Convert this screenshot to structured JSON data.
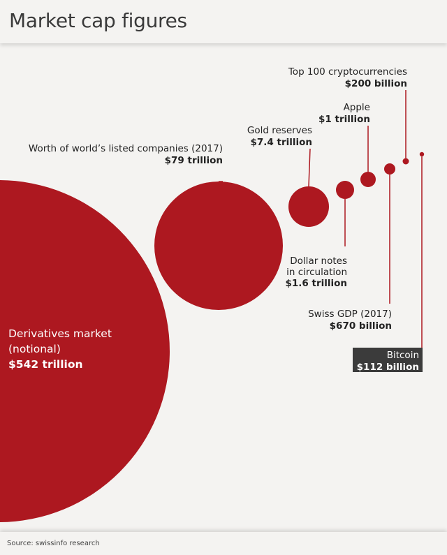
{
  "header": {
    "title": "Market cap figures"
  },
  "footer": {
    "source": "Source: swissinfo research"
  },
  "colors": {
    "bubble": "#ad1820",
    "text": "#222222",
    "leader": "#ad1820",
    "highlight_bg": "#3b3b3b",
    "highlight_text": "#ffffff"
  },
  "chart_data": {
    "type": "bubble",
    "unit": "USD",
    "items": [
      {
        "name_lines": [
          "Derivatives market",
          "(notional)"
        ],
        "value_label": "$542 trillion",
        "value_usd_billion": 542000
      },
      {
        "name_lines": [
          "Worth of world’s listed companies (2017)"
        ],
        "value_label": "$79 trillion",
        "value_usd_billion": 79000
      },
      {
        "name_lines": [
          "Gold reserves"
        ],
        "value_label": "$7.4 trillion",
        "value_usd_billion": 7400
      },
      {
        "name_lines": [
          "Dollar notes",
          "in circulation"
        ],
        "value_label": "$1.6 trillion",
        "value_usd_billion": 1600
      },
      {
        "name_lines": [
          "Apple"
        ],
        "value_label": "$1 trillion",
        "value_usd_billion": 1000
      },
      {
        "name_lines": [
          "Swiss GDP (2017)"
        ],
        "value_label": "$670 billion",
        "value_usd_billion": 670
      },
      {
        "name_lines": [
          "Top 100 cryptocurrencies"
        ],
        "value_label": "$200 billion",
        "value_usd_billion": 200
      },
      {
        "name_lines": [
          "Bitcoin"
        ],
        "value_label": "$112 billion",
        "value_usd_billion": 112,
        "highlighted": true
      }
    ]
  }
}
